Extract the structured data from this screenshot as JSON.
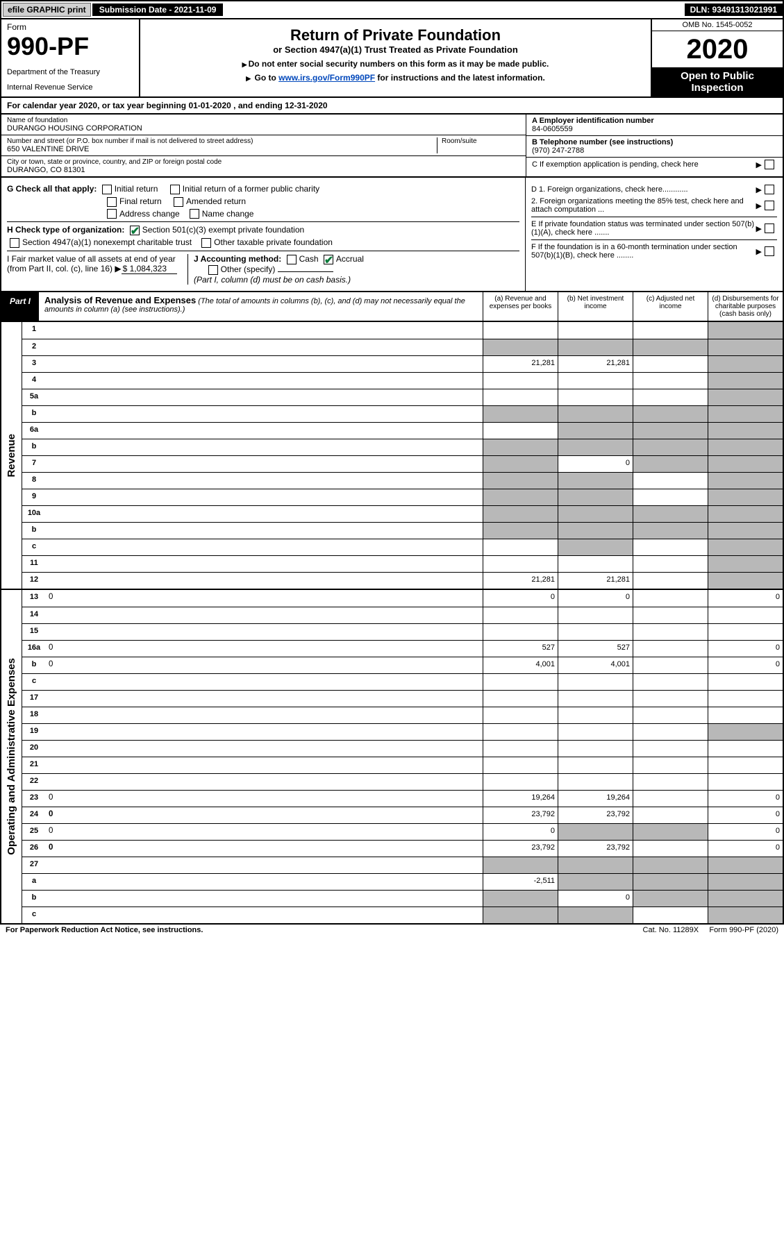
{
  "top": {
    "efile": "efile GRAPHIC print",
    "submission": "Submission Date - 2021-11-09",
    "dln": "DLN: 93491313021991"
  },
  "header": {
    "form": "Form",
    "number": "990-PF",
    "dept": "Department of the Treasury",
    "irs": "Internal Revenue Service",
    "title": "Return of Private Foundation",
    "subtitle": "or Section 4947(a)(1) Trust Treated as Private Foundation",
    "inst1": "Do not enter social security numbers on this form as it may be made public.",
    "inst2_pre": "Go to ",
    "inst2_link": "www.irs.gov/Form990PF",
    "inst2_post": " for instructions and the latest information.",
    "omb": "OMB No. 1545-0052",
    "year": "2020",
    "public": "Open to Public Inspection"
  },
  "cal": "For calendar year 2020, or tax year beginning 01-01-2020             , and ending 12-31-2020",
  "id": {
    "name_lbl": "Name of foundation",
    "name": "DURANGO HOUSING CORPORATION",
    "addr_lbl": "Number and street (or P.O. box number if mail is not delivered to street address)",
    "addr": "650 VALENTINE DRIVE",
    "room_lbl": "Room/suite",
    "city_lbl": "City or town, state or province, country, and ZIP or foreign postal code",
    "city": "DURANGO, CO  81301",
    "a_lbl": "A Employer identification number",
    "a": "84-0605559",
    "b_lbl": "B Telephone number (see instructions)",
    "b": "(970) 247-2788",
    "c_lbl": "C If exemption application is pending, check here"
  },
  "g": {
    "lbl": "G Check all that apply:",
    "o1": "Initial return",
    "o2": "Initial return of a former public charity",
    "o3": "Final return",
    "o4": "Amended return",
    "o5": "Address change",
    "o6": "Name change"
  },
  "h": {
    "lbl": "H Check type of organization:",
    "o1": "Section 501(c)(3) exempt private foundation",
    "o2": "Section 4947(a)(1) nonexempt charitable trust",
    "o3": "Other taxable private foundation"
  },
  "i": {
    "lbl": "I Fair market value of all assets at end of year (from Part II, col. (c), line 16)",
    "val": "$  1,084,323"
  },
  "j": {
    "lbl": "J Accounting method:",
    "o1": "Cash",
    "o2": "Accrual",
    "o3": "Other (specify)",
    "note": "(Part I, column (d) must be on cash basis.)"
  },
  "d": {
    "d1": "D 1. Foreign organizations, check here............",
    "d2": "2. Foreign organizations meeting the 85% test, check here and attach computation ..."
  },
  "e": "E  If private foundation status was terminated under section 507(b)(1)(A), check here .......",
  "f": "F  If the foundation is in a 60-month termination under section 507(b)(1)(B), check here ........",
  "part1": {
    "tag": "Part I",
    "title": "Analysis of Revenue and Expenses",
    "note": " (The total of amounts in columns (b), (c), and (d) may not necessarily equal the amounts in column (a) (see instructions).)",
    "col_a": "(a)   Revenue and expenses per books",
    "col_b": "(b)   Net investment income",
    "col_c": "(c)   Adjusted net income",
    "col_d": "(d)   Disbursements for charitable purposes (cash basis only)"
  },
  "labels": {
    "revenue": "Revenue",
    "opex": "Operating and Administrative Expenses"
  },
  "rows_rev": [
    {
      "n": "1",
      "d": "",
      "a": "",
      "b": "",
      "c": "",
      "shade_d": true
    },
    {
      "n": "2",
      "d": "",
      "a": "",
      "b": "",
      "c": "",
      "shade_all": true,
      "shade_d": true,
      "desc_html": true
    },
    {
      "n": "3",
      "d": "",
      "a": "21,281",
      "b": "21,281",
      "c": "",
      "shade_d": true
    },
    {
      "n": "4",
      "d": "",
      "a": "",
      "b": "",
      "c": "",
      "shade_d": true
    },
    {
      "n": "5a",
      "d": "",
      "a": "",
      "b": "",
      "c": "",
      "shade_d": true
    },
    {
      "n": "b",
      "d": "",
      "a": "",
      "b": "",
      "c": "",
      "shade_all": true,
      "shade_d": true
    },
    {
      "n": "6a",
      "d": "",
      "a": "",
      "b": "",
      "c": "",
      "shade_bcd": true
    },
    {
      "n": "b",
      "d": "",
      "a": "",
      "b": "",
      "c": "",
      "shade_all": true,
      "shade_d": true
    },
    {
      "n": "7",
      "d": "",
      "a": "",
      "b": "0",
      "c": "",
      "shade_a": true,
      "shade_cd": true
    },
    {
      "n": "8",
      "d": "",
      "a": "",
      "b": "",
      "c": "",
      "shade_ab": true,
      "shade_d": true
    },
    {
      "n": "9",
      "d": "",
      "a": "",
      "b": "",
      "c": "",
      "shade_ab": true,
      "shade_d": true
    },
    {
      "n": "10a",
      "d": "",
      "a": "",
      "b": "",
      "c": "",
      "shade_all": true,
      "shade_d": true
    },
    {
      "n": "b",
      "d": "",
      "a": "",
      "b": "",
      "c": "",
      "shade_all": true,
      "shade_d": true
    },
    {
      "n": "c",
      "d": "",
      "a": "",
      "b": "",
      "c": "",
      "shade_b": true,
      "shade_d": true
    },
    {
      "n": "11",
      "d": "",
      "a": "",
      "b": "",
      "c": "",
      "shade_d": true
    },
    {
      "n": "12",
      "d": "",
      "a": "21,281",
      "b": "21,281",
      "c": "",
      "bold": true,
      "shade_d": true
    }
  ],
  "rows_exp": [
    {
      "n": "13",
      "d": "0",
      "a": "0",
      "b": "0",
      "c": ""
    },
    {
      "n": "14",
      "d": "",
      "a": "",
      "b": "",
      "c": ""
    },
    {
      "n": "15",
      "d": "",
      "a": "",
      "b": "",
      "c": ""
    },
    {
      "n": "16a",
      "d": "0",
      "a": "527",
      "b": "527",
      "c": ""
    },
    {
      "n": "b",
      "d": "0",
      "a": "4,001",
      "b": "4,001",
      "c": ""
    },
    {
      "n": "c",
      "d": "",
      "a": "",
      "b": "",
      "c": ""
    },
    {
      "n": "17",
      "d": "",
      "a": "",
      "b": "",
      "c": ""
    },
    {
      "n": "18",
      "d": "",
      "a": "",
      "b": "",
      "c": ""
    },
    {
      "n": "19",
      "d": "",
      "a": "",
      "b": "",
      "c": "",
      "shade_d": true
    },
    {
      "n": "20",
      "d": "",
      "a": "",
      "b": "",
      "c": ""
    },
    {
      "n": "21",
      "d": "",
      "a": "",
      "b": "",
      "c": ""
    },
    {
      "n": "22",
      "d": "",
      "a": "",
      "b": "",
      "c": ""
    },
    {
      "n": "23",
      "d": "0",
      "a": "19,264",
      "b": "19,264",
      "c": ""
    },
    {
      "n": "24",
      "d": "0",
      "a": "23,792",
      "b": "23,792",
      "c": "",
      "bold": true
    },
    {
      "n": "25",
      "d": "0",
      "a": "0",
      "b": "",
      "c": "",
      "shade_bc": true
    },
    {
      "n": "26",
      "d": "0",
      "a": "23,792",
      "b": "23,792",
      "c": "",
      "bold": true
    },
    {
      "n": "27",
      "d": "",
      "a": "",
      "b": "",
      "c": "",
      "shade_all": true
    },
    {
      "n": "a",
      "d": "",
      "a": "-2,511",
      "b": "",
      "c": "",
      "bold": true,
      "shade_bcd": true
    },
    {
      "n": "b",
      "d": "",
      "a": "",
      "b": "0",
      "c": "",
      "bold": true,
      "shade_a": true,
      "shade_cd": true
    },
    {
      "n": "c",
      "d": "",
      "a": "",
      "b": "",
      "c": "",
      "bold": true,
      "shade_ab": true,
      "shade_d": true
    }
  ],
  "footer": {
    "l": "For Paperwork Reduction Act Notice, see instructions.",
    "m": "Cat. No. 11289X",
    "r": "Form 990-PF (2020)"
  }
}
